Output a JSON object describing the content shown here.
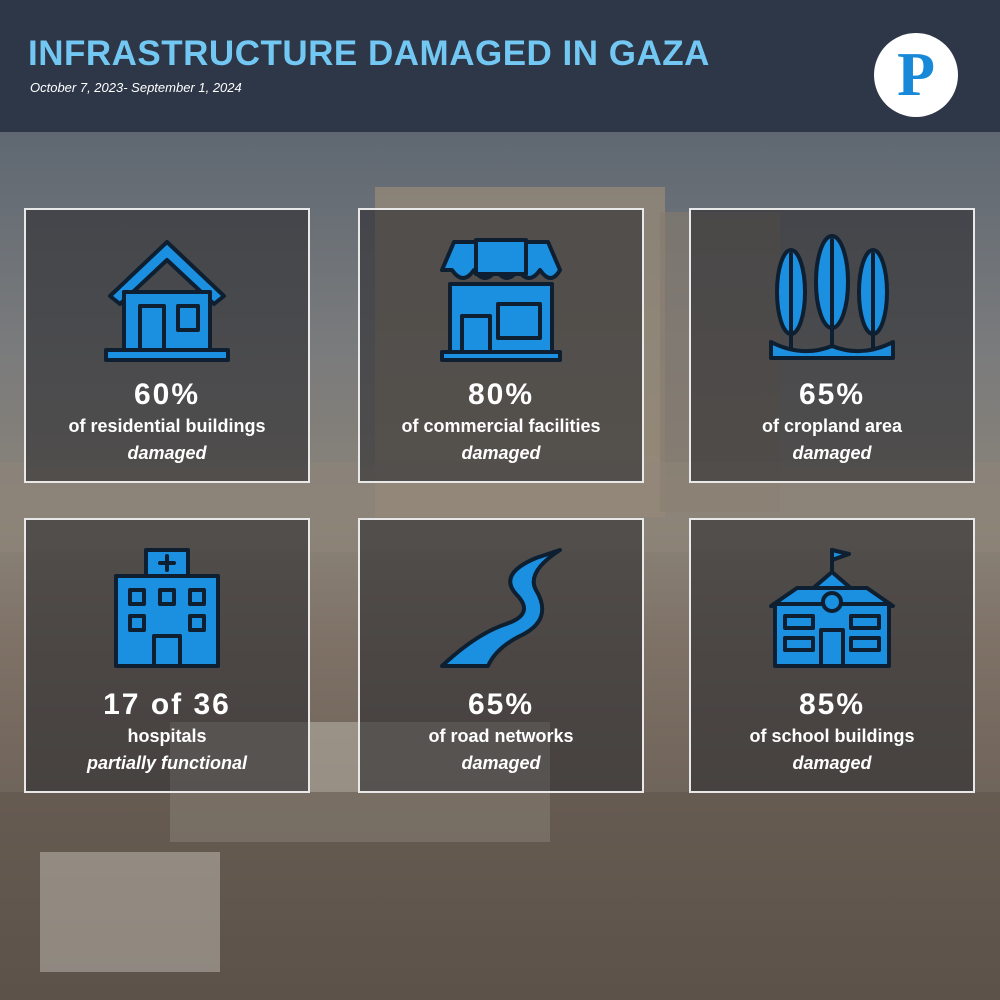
{
  "header": {
    "title": "INFRASTRUCTURE DAMAGED IN GAZA",
    "subtitle": "October 7, 2023- September 1, 2024",
    "logo": "P"
  },
  "cards": [
    {
      "stat": "60%",
      "description": "of residential buildings",
      "status": "damaged"
    },
    {
      "stat": "80%",
      "description": "of commercial facilities",
      "status": "damaged"
    },
    {
      "stat": "65%",
      "description": "of cropland area",
      "status": "damaged"
    },
    {
      "stat": "17 of 36",
      "description": "hospitals",
      "status": "partially functional"
    },
    {
      "stat": "65%",
      "description": "of road networks",
      "status": "damaged"
    },
    {
      "stat": "85%",
      "description": "of school buildings",
      "status": "damaged"
    }
  ]
}
